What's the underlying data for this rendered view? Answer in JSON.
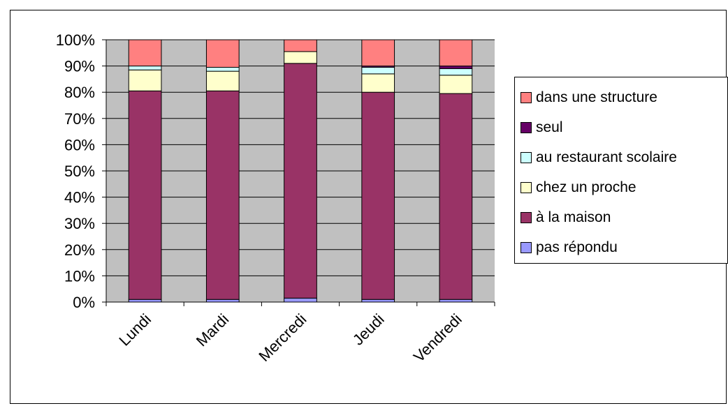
{
  "chart_data": {
    "type": "bar",
    "stacked": "percent",
    "categories": [
      "Lundi",
      "Mardi",
      "Mercredi",
      "Jeudi",
      "Vendredi"
    ],
    "series": [
      {
        "name": "pas répondu",
        "color": "#9999FF",
        "values": [
          1.0,
          1.0,
          1.5,
          1.0,
          1.0
        ]
      },
      {
        "name": "à la maison",
        "color": "#993366",
        "values": [
          79.5,
          79.5,
          89.5,
          79.0,
          78.5
        ]
      },
      {
        "name": "chez un proche",
        "color": "#FFFFCC",
        "values": [
          8.0,
          7.5,
          4.5,
          7.0,
          7.0
        ]
      },
      {
        "name": "au restaurant scolaire",
        "color": "#CCFFFF",
        "values": [
          1.5,
          1.5,
          0.0,
          2.5,
          2.5
        ]
      },
      {
        "name": "seul",
        "color": "#660066",
        "values": [
          0.0,
          0.0,
          0.0,
          0.5,
          1.0
        ]
      },
      {
        "name": "dans une structure",
        "color": "#FF8080",
        "values": [
          10.0,
          10.5,
          4.5,
          10.0,
          10.0
        ]
      }
    ],
    "y_ticks": [
      "0%",
      "10%",
      "20%",
      "30%",
      "40%",
      "50%",
      "60%",
      "70%",
      "80%",
      "90%",
      "100%"
    ],
    "ylim": [
      0,
      100
    ],
    "grid": true,
    "plot_background": "#C0C0C0",
    "legend_position": "right"
  }
}
